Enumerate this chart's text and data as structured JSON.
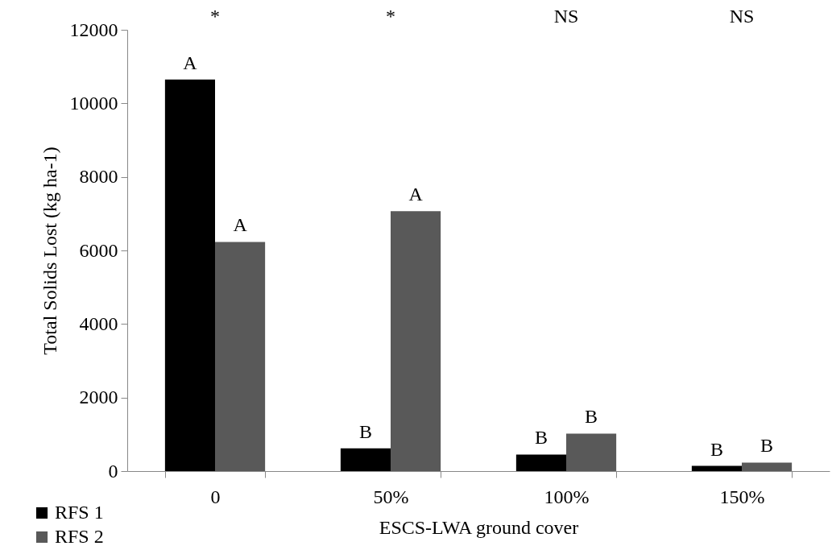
{
  "chart_data": {
    "type": "bar",
    "xlabel": "ESCS-LWA ground cover",
    "ylabel": "Total Solids Lost (kg ha-1)",
    "categories": [
      "0",
      "50%",
      "100%",
      "150%"
    ],
    "series": [
      {
        "name": "RFS 1",
        "color": "#000000",
        "values": [
          10650,
          620,
          450,
          140
        ]
      },
      {
        "name": "RFS 2",
        "color": "#595959",
        "values": [
          6230,
          7070,
          1020,
          230
        ]
      }
    ],
    "ylim": [
      0,
      12000
    ],
    "yticks": [
      0,
      2000,
      4000,
      6000,
      8000,
      10000,
      12000
    ],
    "grid": false,
    "legend": "bottom left",
    "annotations": [
      "*",
      "*",
      "NS",
      "NS",
      {
        "text": "A",
        "x": "0",
        "y": 10650
      },
      {
        "text": "A",
        "x": "0",
        "y": 6230
      },
      {
        "text": "B",
        "x": "50%",
        "y": 620
      },
      {
        "text": "A",
        "x": "50%",
        "y": 7070
      },
      {
        "text": "B",
        "x": "100%",
        "y": 450
      },
      {
        "text": "B",
        "x": "100%",
        "y": 1020
      },
      {
        "text": "B",
        "x": "150%",
        "y": 140
      },
      {
        "text": "B",
        "x": "150%",
        "y": 230
      }
    ]
  }
}
